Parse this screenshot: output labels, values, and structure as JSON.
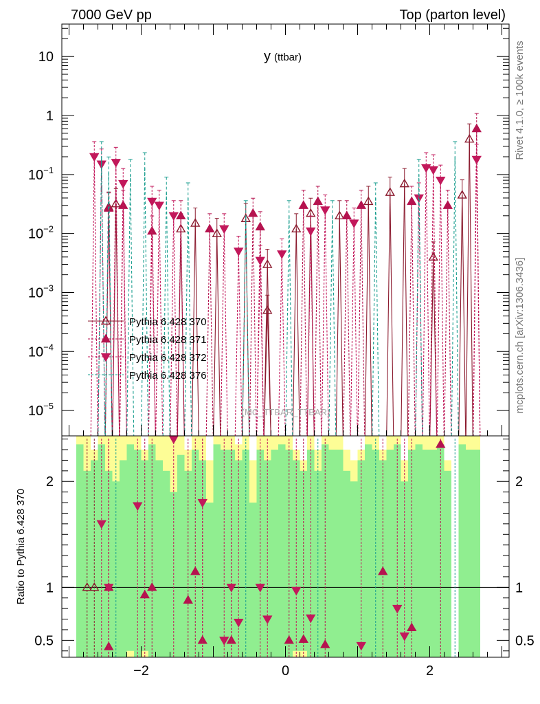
{
  "header": {
    "left": "7000 GeV pp",
    "right": "Top (parton level)"
  },
  "side_labels": {
    "rivet": "Rivet 4.1.0, ≥ 100k events",
    "mcplots": "mcplots.cern.ch [arXiv:1306.3436]"
  },
  "chart_data": [
    {
      "type": "line",
      "panel": "main",
      "title": "y",
      "title_sub": "(ttbar)",
      "watermark": "(MC_TTBAR_TTBAR)",
      "xlim": [
        -3.1,
        3.1
      ],
      "ylim": [
        5e-06,
        30
      ],
      "yscale": "log",
      "y_tick_labels": [
        {
          "v": 10,
          "label": "10"
        },
        {
          "v": 1,
          "label": "1"
        },
        {
          "v": 0.1,
          "base": "10",
          "exp": "−1"
        },
        {
          "v": 0.01,
          "base": "10",
          "exp": "−2"
        },
        {
          "v": 0.001,
          "base": "10",
          "exp": "−3"
        },
        {
          "v": 0.0001,
          "base": "10",
          "exp": "−4"
        },
        {
          "v": 1e-05,
          "base": "10",
          "exp": "−5"
        }
      ],
      "legend": [
        "Pythia 6.428 370",
        "Pythia 6.428 371",
        "Pythia 6.428 372",
        "Pythia 6.428 376"
      ],
      "series": [
        {
          "name": "Pythia 6.428 370",
          "color": "#8b1a2e",
          "marker": "triangle-up-open",
          "points": [
            [
              -2.45,
              0.028
            ],
            [
              -2.35,
              0.032
            ],
            [
              -1.45,
              0.012
            ],
            [
              -1.25,
              0.015
            ],
            [
              -0.95,
              0.01
            ],
            [
              -0.55,
              0.018
            ],
            [
              -0.25,
              0.003
            ],
            [
              -0.25,
              0.0005
            ],
            [
              0.15,
              0.012
            ],
            [
              0.35,
              0.022
            ],
            [
              0.75,
              0.02
            ],
            [
              1.15,
              0.035
            ],
            [
              1.45,
              0.05
            ],
            [
              1.65,
              0.07
            ],
            [
              2.05,
              0.004
            ],
            [
              2.45,
              0.045
            ],
            [
              2.55,
              0.4
            ]
          ]
        },
        {
          "name": "Pythia 6.428 371",
          "color": "#b5134f",
          "marker": "triangle-up",
          "points": [
            [
              -2.45,
              0.027
            ],
            [
              -2.25,
              0.03
            ],
            [
              -1.85,
              0.011
            ],
            [
              -1.45,
              0.02
            ],
            [
              -1.05,
              0.012
            ],
            [
              -0.45,
              0.022
            ],
            [
              -0.35,
              0.013
            ],
            [
              0.25,
              0.03
            ],
            [
              0.45,
              0.035
            ],
            [
              0.85,
              0.02
            ],
            [
              1.05,
              0.03
            ],
            [
              1.75,
              0.035
            ],
            [
              2.25,
              0.03
            ],
            [
              2.65,
              0.6
            ]
          ]
        },
        {
          "name": "Pythia 6.428 372",
          "color": "#c2185b",
          "marker": "triangle-down",
          "points": [
            [
              -2.65,
              0.2
            ],
            [
              -2.55,
              0.15
            ],
            [
              -2.35,
              0.16
            ],
            [
              -2.25,
              0.07
            ],
            [
              -1.85,
              0.035
            ],
            [
              -1.75,
              0.03
            ],
            [
              -1.55,
              0.02
            ],
            [
              -0.85,
              0.012
            ],
            [
              -0.65,
              0.005
            ],
            [
              -0.35,
              0.0035
            ],
            [
              -0.05,
              0.0045
            ],
            [
              0.35,
              0.011
            ],
            [
              0.55,
              0.025
            ],
            [
              0.95,
              0.015
            ],
            [
              1.85,
              0.04
            ],
            [
              1.95,
              0.13
            ],
            [
              2.05,
              0.12
            ],
            [
              2.15,
              0.08
            ],
            [
              2.65,
              0.18
            ]
          ]
        },
        {
          "name": "Pythia 6.428 376",
          "color": "#1a9e8f",
          "marker": "none",
          "points": [
            [
              -2.55,
              0.2
            ],
            [
              -2.45,
              0.11
            ],
            [
              -2.15,
              0.1
            ],
            [
              -1.95,
              0.13
            ],
            [
              -1.65,
              0.05
            ],
            [
              -1.35,
              0.04
            ],
            [
              -0.55,
              0.02
            ],
            [
              0.05,
              0.02
            ],
            [
              0.65,
              0.02
            ],
            [
              1.25,
              0.04
            ],
            [
              1.85,
              0.1
            ],
            [
              2.35,
              0.2
            ]
          ]
        }
      ]
    },
    {
      "type": "area",
      "panel": "ratio",
      "ylabel": "Ratio to Pythia 6.428 370",
      "xlim": [
        -3.1,
        3.1
      ],
      "ylim": [
        0.34,
        2.43
      ],
      "reference_line": 1,
      "x_tick_labels": [
        {
          "v": -2,
          "label": "−2"
        },
        {
          "v": 0,
          "label": "0"
        },
        {
          "v": 2,
          "label": "2"
        }
      ],
      "y_tick_labels": [
        {
          "v": 0.5,
          "label": "0.5"
        },
        {
          "v": 1,
          "label": "1"
        },
        {
          "v": 2,
          "label": "2"
        }
      ],
      "bands": {
        "yellow_color": "#fdfd96",
        "green_color": "#90ee90",
        "bins": [
          [
            -2.9,
            -2.8,
            0.34,
            2.43,
            0.34,
            2.35
          ],
          [
            -2.8,
            -2.7,
            0.34,
            2.43,
            0.34,
            2.1
          ],
          [
            -2.7,
            -2.6,
            0.34,
            2.3,
            0.34,
            2.2
          ],
          [
            -2.6,
            -2.5,
            0.34,
            2.43,
            0.34,
            2.35
          ],
          [
            -2.5,
            -2.4,
            0.34,
            2.43,
            0.34,
            2.1
          ],
          [
            -2.4,
            -2.3,
            0.34,
            2.43,
            0.34,
            2.0
          ],
          [
            -2.3,
            -2.2,
            0.34,
            2.43,
            0.34,
            2.2
          ],
          [
            -2.2,
            -2.1,
            0.34,
            2.43,
            0.4,
            2.35
          ],
          [
            -2.1,
            -2.0,
            0.34,
            2.43,
            0.34,
            2.3
          ],
          [
            -2.0,
            -1.9,
            0.34,
            2.3,
            0.4,
            2.2
          ],
          [
            -1.9,
            -1.8,
            0.34,
            2.43,
            0.34,
            2.35
          ],
          [
            -1.8,
            -1.7,
            0.34,
            2.43,
            0.34,
            2.2
          ],
          [
            -1.7,
            -1.6,
            0.34,
            2.43,
            0.34,
            2.1
          ],
          [
            -1.6,
            -1.5,
            0.34,
            2.4,
            0.34,
            1.9
          ],
          [
            -1.5,
            -1.4,
            0.34,
            2.43,
            0.34,
            2.25
          ],
          [
            -1.4,
            -1.3,
            0.34,
            2.3,
            0.34,
            2.1
          ],
          [
            -1.3,
            -1.2,
            0.34,
            2.43,
            0.34,
            2.3
          ],
          [
            -1.2,
            -1.1,
            0.34,
            2.43,
            0.34,
            2.2
          ],
          [
            -1.1,
            -1.0,
            0.34,
            2.2,
            0.34,
            1.8
          ],
          [
            -1.0,
            -0.9,
            0.34,
            2.43,
            0.34,
            2.35
          ],
          [
            -0.9,
            -0.8,
            0.34,
            2.43,
            0.34,
            2.3
          ],
          [
            -0.8,
            -0.7,
            0.34,
            2.43,
            0.34,
            2.3
          ],
          [
            -0.7,
            -0.6,
            0.34,
            2.35,
            0.34,
            2.2
          ],
          [
            -0.6,
            -0.5,
            0.34,
            2.43,
            0.34,
            2.3
          ],
          [
            -0.5,
            -0.4,
            0.34,
            2.2,
            0.34,
            1.8
          ],
          [
            -0.4,
            -0.3,
            0.34,
            2.43,
            0.34,
            2.3
          ],
          [
            -0.3,
            -0.2,
            0.34,
            2.43,
            0.34,
            2.2
          ],
          [
            -0.2,
            -0.1,
            0.34,
            2.43,
            0.34,
            2.3
          ],
          [
            -0.1,
            0.0,
            0.34,
            2.43,
            0.34,
            2.35
          ],
          [
            0.0,
            0.1,
            0.34,
            2.43,
            0.34,
            2.3
          ],
          [
            0.1,
            0.2,
            0.34,
            2.3,
            0.4,
            2.2
          ],
          [
            0.2,
            0.3,
            0.34,
            2.2,
            0.4,
            2.1
          ],
          [
            0.3,
            0.4,
            0.34,
            2.43,
            0.34,
            2.3
          ],
          [
            0.4,
            0.5,
            0.34,
            2.3,
            0.34,
            2.1
          ],
          [
            0.5,
            0.6,
            0.34,
            2.43,
            0.34,
            2.35
          ],
          [
            0.6,
            0.7,
            0.34,
            2.43,
            0.34,
            2.3
          ],
          [
            0.7,
            0.8,
            0.34,
            2.43,
            0.34,
            2.3
          ],
          [
            0.8,
            0.9,
            0.34,
            2.3,
            0.34,
            2.1
          ],
          [
            0.9,
            1.0,
            0.34,
            2.2,
            0.34,
            2.0
          ],
          [
            1.0,
            1.1,
            0.34,
            2.3,
            0.34,
            2.2
          ],
          [
            1.1,
            1.2,
            0.34,
            2.43,
            0.34,
            2.35
          ],
          [
            1.2,
            1.3,
            0.34,
            2.43,
            0.34,
            2.3
          ],
          [
            1.3,
            1.4,
            0.34,
            2.3,
            0.34,
            2.2
          ],
          [
            1.4,
            1.5,
            0.34,
            2.43,
            0.34,
            2.3
          ],
          [
            1.5,
            1.6,
            0.34,
            2.43,
            0.34,
            2.35
          ],
          [
            1.6,
            1.7,
            0.34,
            2.2,
            0.34,
            2.0
          ],
          [
            1.7,
            1.8,
            0.34,
            2.43,
            0.34,
            2.3
          ],
          [
            1.8,
            1.9,
            0.34,
            2.43,
            0.34,
            2.35
          ],
          [
            1.9,
            2.0,
            0.34,
            2.43,
            0.34,
            2.3
          ],
          [
            2.0,
            2.1,
            0.34,
            2.43,
            0.34,
            2.3
          ],
          [
            2.1,
            2.2,
            0.34,
            2.43,
            0.34,
            2.35
          ],
          [
            2.2,
            2.3,
            0.34,
            2.2,
            0.34,
            2.1
          ],
          [
            2.4,
            2.5,
            0.34,
            2.43,
            0.34,
            2.35
          ],
          [
            2.5,
            2.6,
            0.34,
            2.43,
            0.34,
            2.3
          ],
          [
            2.6,
            2.7,
            0.34,
            2.43,
            0.34,
            2.3
          ]
        ]
      },
      "series": [
        {
          "name": "Pythia 6.428 370",
          "color": "#8b1a2e",
          "marker": "triangle-up-open",
          "points": [
            [
              -2.75,
              1.0
            ],
            [
              -2.65,
              1.0
            ]
          ]
        },
        {
          "name": "Pythia 6.428 371",
          "color": "#b5134f",
          "marker": "triangle-up",
          "points": [
            [
              -2.45,
              0.44
            ],
            [
              -2.45,
              1.0
            ],
            [
              -1.95,
              0.93
            ],
            [
              -1.85,
              1.0
            ],
            [
              -1.35,
              0.88
            ],
            [
              -1.25,
              1.15
            ],
            [
              -1.15,
              0.5
            ],
            [
              -0.75,
              0.5
            ],
            [
              0.05,
              0.5
            ],
            [
              0.25,
              0.51
            ],
            [
              0.55,
              0.46
            ],
            [
              1.35,
              1.15
            ],
            [
              1.75,
              0.62
            ],
            [
              2.15,
              2.35
            ]
          ]
        },
        {
          "name": "Pythia 6.428 372",
          "color": "#c2185b",
          "marker": "triangle-down",
          "points": [
            [
              -2.55,
              1.6
            ],
            [
              -2.45,
              1.0
            ],
            [
              -2.05,
              1.77
            ],
            [
              -1.55,
              2.4
            ],
            [
              -1.15,
              1.8
            ],
            [
              -0.85,
              0.5
            ],
            [
              -0.75,
              1.0
            ],
            [
              -0.65,
              0.67
            ],
            [
              -0.35,
              1.0
            ],
            [
              -0.25,
              0.7
            ],
            [
              0.15,
              0.97
            ],
            [
              0.35,
              0.71
            ],
            [
              1.05,
              0.45
            ],
            [
              1.55,
              0.8
            ],
            [
              1.65,
              0.54
            ]
          ]
        },
        {
          "name": "Pythia 6.428 376",
          "color": "#1a9e8f",
          "marker": "none",
          "points": [
            [
              -2.35,
              1.5
            ],
            [
              -0.55,
              1.3
            ],
            [
              0.45,
              1.2
            ],
            [
              1.25,
              0.8
            ],
            [
              2.35,
              1.1
            ]
          ]
        }
      ]
    }
  ]
}
